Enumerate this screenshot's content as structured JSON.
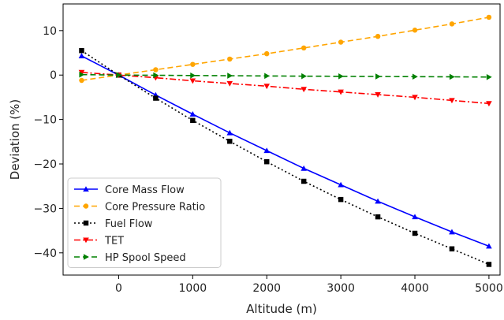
{
  "chart_data": {
    "type": "line",
    "xlabel": "Altitude (m)",
    "ylabel": "Deviation (%)",
    "xlim": [
      -750,
      5150
    ],
    "ylim": [
      -45,
      16
    ],
    "xticks": [
      0,
      1000,
      2000,
      3000,
      4000,
      5000
    ],
    "yticks": [
      10,
      0,
      -10,
      -20,
      -30,
      -40
    ],
    "xtick_labels": [
      "0",
      "1000",
      "2000",
      "3000",
      "4000",
      "5000"
    ],
    "ytick_labels": [
      "10",
      "0",
      "−10",
      "−20",
      "−30",
      "−40"
    ],
    "grid": false,
    "legend_position": "bottom-left",
    "x": [
      -500,
      0,
      500,
      1000,
      1500,
      2000,
      2500,
      3000,
      3500,
      4000,
      4500,
      5000
    ],
    "series": [
      {
        "name": "Core Mass Flow",
        "color": "#0000ff",
        "linestyle": "solid",
        "marker": "triangle-up",
        "values": [
          4.3,
          0,
          -4.5,
          -8.8,
          -13.0,
          -17.0,
          -21.0,
          -24.7,
          -28.4,
          -31.9,
          -35.3,
          -38.5
        ]
      },
      {
        "name": "Core Pressure Ratio",
        "color": "#ffa500",
        "linestyle": "dashed",
        "marker": "circle",
        "values": [
          -1.2,
          0,
          1.2,
          2.4,
          3.6,
          4.8,
          6.1,
          7.4,
          8.7,
          10.1,
          11.5,
          13.0
        ]
      },
      {
        "name": "Fuel Flow",
        "color": "#000000",
        "linestyle": "dotted",
        "marker": "square",
        "values": [
          5.5,
          0,
          -5.2,
          -10.2,
          -14.9,
          -19.5,
          -23.9,
          -28.0,
          -31.9,
          -35.6,
          -39.1,
          -42.6
        ]
      },
      {
        "name": "TET",
        "color": "#ff0000",
        "linestyle": "dashdot",
        "marker": "triangle-down",
        "values": [
          0.6,
          0,
          -0.6,
          -1.3,
          -1.9,
          -2.5,
          -3.2,
          -3.8,
          -4.4,
          -5.0,
          -5.7,
          -6.4
        ]
      },
      {
        "name": "HP Spool Speed",
        "color": "#008000",
        "linestyle": "dashed",
        "marker": "triangle-right",
        "values": [
          0.1,
          0,
          -0.05,
          -0.1,
          -0.15,
          -0.2,
          -0.25,
          -0.28,
          -0.32,
          -0.36,
          -0.4,
          -0.45
        ]
      }
    ]
  }
}
